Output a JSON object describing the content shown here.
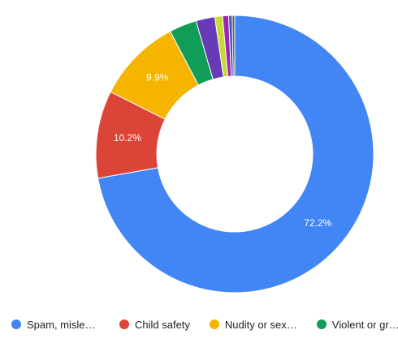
{
  "chart_data": {
    "type": "pie",
    "donut": true,
    "title": "",
    "legend_position": "bottom",
    "slices": [
      {
        "name": "Spam, mislea…",
        "value": 72.2,
        "label": "72.2%",
        "color": "#4285f4"
      },
      {
        "name": "Child safety",
        "value": 10.2,
        "label": "10.2%",
        "color": "#db4437"
      },
      {
        "name": "Nudity or sex…",
        "value": 9.9,
        "label": "9.9%",
        "color": "#f4b400"
      },
      {
        "name": "Violent or gra…",
        "value": 3.2,
        "label": "",
        "color": "#0f9d58"
      },
      {
        "name": "",
        "value": 2.2,
        "label": "",
        "color": "#673ab7"
      },
      {
        "name": "",
        "value": 0.9,
        "label": "",
        "color": "#c6d935"
      },
      {
        "name": "",
        "value": 0.7,
        "label": "",
        "color": "#9c27b0"
      },
      {
        "name": "",
        "value": 0.4,
        "label": "",
        "color": "#3f51b5"
      },
      {
        "name": "",
        "value": 0.3,
        "label": "",
        "color": "#5f6368"
      }
    ],
    "legend": [
      {
        "label": "Spam, mislea…",
        "color": "#4285f4"
      },
      {
        "label": "Child safety",
        "color": "#db4437"
      },
      {
        "label": "Nudity or sex…",
        "color": "#f4b400"
      },
      {
        "label": "Violent or gra…",
        "color": "#0f9d58"
      }
    ]
  }
}
